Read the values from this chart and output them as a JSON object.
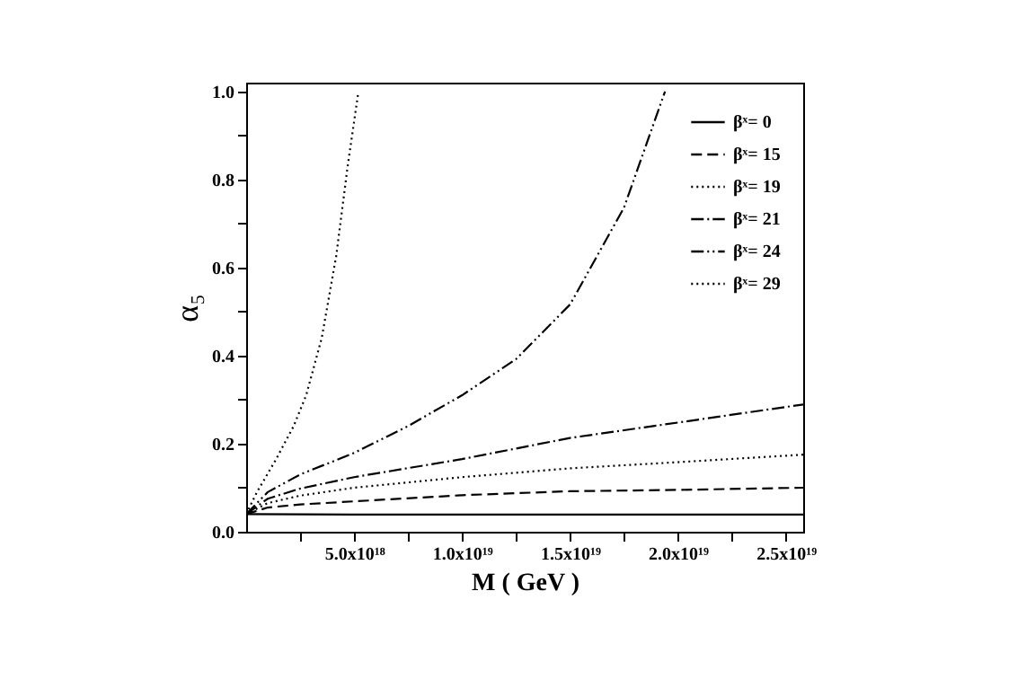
{
  "chart_data": {
    "type": "line",
    "xlabel": "M ( GeV )",
    "ylabel": "α₅",
    "xlim": [
      0,
      2.58e+19
    ],
    "ylim": [
      0,
      1.02
    ],
    "xticks": [
      {
        "value": 2.5e+18,
        "label": null
      },
      {
        "value": 5e+18,
        "label": "5.0x10¹⁸"
      },
      {
        "value": 7.5e+18,
        "label": null
      },
      {
        "value": 1e+19,
        "label": "1.0x10¹⁹"
      },
      {
        "value": 1.25e+19,
        "label": null
      },
      {
        "value": 1.5e+19,
        "label": "1.5x10¹⁹"
      },
      {
        "value": 1.75e+19,
        "label": null
      },
      {
        "value": 2e+19,
        "label": "2.0x10¹⁹"
      },
      {
        "value": 2.25e+19,
        "label": null
      },
      {
        "value": 2.5e+19,
        "label": "2.5x10¹⁹"
      }
    ],
    "yticks": [
      {
        "value": 0,
        "label": "0.0"
      },
      {
        "value": 0.1,
        "label": null
      },
      {
        "value": 0.2,
        "label": "0.2"
      },
      {
        "value": 0.3,
        "label": null
      },
      {
        "value": 0.4,
        "label": "0.4"
      },
      {
        "value": 0.5,
        "label": null
      },
      {
        "value": 0.6,
        "label": "0.6"
      },
      {
        "value": 0.7,
        "label": null
      },
      {
        "value": 0.8,
        "label": "0.8"
      },
      {
        "value": 0.9,
        "label": null
      },
      {
        "value": 1.0,
        "label": "1.0"
      }
    ],
    "grid": false,
    "legend": "top right",
    "marker": "none",
    "series": [
      {
        "name": "βˣ=  0",
        "color": "#000000",
        "line_style": "solid",
        "x": [
          0,
          5e+18,
          1e+19,
          1.5e+19,
          2e+19,
          2.58e+19
        ],
        "values": [
          0.04,
          0.039,
          0.039,
          0.039,
          0.039,
          0.039
        ]
      },
      {
        "name": "βˣ= 15",
        "color": "#000000",
        "line_style": "dashed",
        "x": [
          0,
          1e+18,
          2.5e+18,
          5e+18,
          1e+19,
          1.5e+19,
          2e+19,
          2.58e+19
        ],
        "values": [
          0.04,
          0.055,
          0.062,
          0.069,
          0.083,
          0.092,
          0.095,
          0.1
        ]
      },
      {
        "name": "βˣ= 19",
        "color": "#000000",
        "line_style": "dotted",
        "x": [
          0,
          1e+18,
          2.5e+18,
          5e+18,
          1e+19,
          1.5e+19,
          2e+19,
          2.58e+19
        ],
        "values": [
          0.04,
          0.065,
          0.082,
          0.1,
          0.124,
          0.144,
          0.158,
          0.175
        ]
      },
      {
        "name": "βˣ= 21",
        "color": "#000000",
        "line_style": "dashdot",
        "x": [
          0,
          1e+18,
          2.5e+18,
          5e+18,
          1e+19,
          1.5e+19,
          2e+19,
          2.58e+19
        ],
        "values": [
          0.04,
          0.075,
          0.098,
          0.124,
          0.165,
          0.213,
          0.248,
          0.289
        ]
      },
      {
        "name": "βˣ= 24",
        "color": "#000000",
        "line_style": "dashdotdot",
        "x": [
          0,
          1e+18,
          2.5e+18,
          5e+18,
          7.5e+18,
          1e+19,
          1.25e+19,
          1.5e+19,
          1.75e+19,
          1.94e+19
        ],
        "values": [
          0.04,
          0.09,
          0.13,
          0.179,
          0.24,
          0.31,
          0.392,
          0.516,
          0.736,
          1.0
        ]
      },
      {
        "name": "βˣ= 29",
        "color": "#000000",
        "line_style": "dotted",
        "x": [
          0,
          5e+17,
          1.39e+18,
          2.2e+18,
          2.78e+18,
          3.5e+18,
          4.17e+18,
          4.7e+18,
          5.2e+18
        ],
        "values": [
          0.04,
          0.09,
          0.165,
          0.24,
          0.31,
          0.44,
          0.626,
          0.83,
          1.0
        ]
      }
    ]
  }
}
